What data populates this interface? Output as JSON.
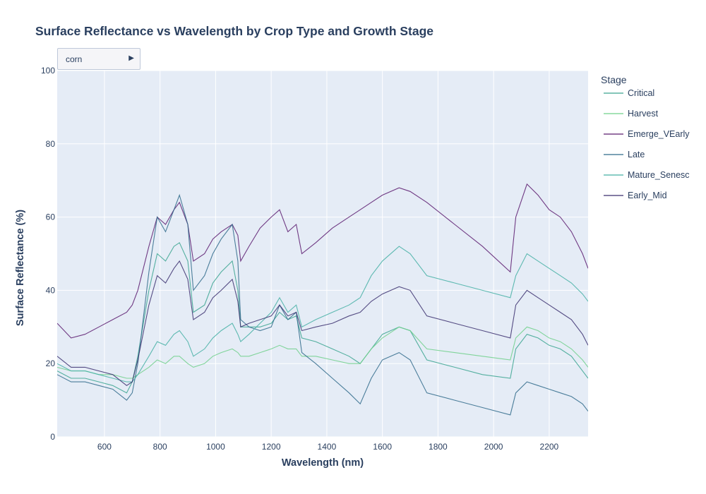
{
  "chart_data": {
    "type": "line",
    "title": "Surface Reflectance vs Wavelength by Crop Type and Growth Stage",
    "xlabel": "Wavelength (nm)",
    "ylabel": "Surface Reflectance (%)",
    "xlim": [
      430,
      2340
    ],
    "ylim": [
      0,
      100
    ],
    "x_ticks": [
      600,
      800,
      1000,
      1200,
      1400,
      1600,
      1800,
      2000,
      2200
    ],
    "y_ticks": [
      0,
      20,
      40,
      60,
      80,
      100
    ],
    "grid": true,
    "plot_background": "#e5ecf6",
    "dropdown": {
      "selected": "corn",
      "arrow": "▶"
    },
    "legend": {
      "title": "Stage",
      "placement": "right",
      "entries": [
        {
          "name": "Critical",
          "color": "#3aa58f"
        },
        {
          "name": "Harvest",
          "color": "#6fd08a"
        },
        {
          "name": "Emerge_VEarly",
          "color": "#5a1a6e"
        },
        {
          "name": "Late",
          "color": "#2f6a8a"
        },
        {
          "name": "Mature_Senesc",
          "color": "#45b0a4"
        },
        {
          "name": "Early_Mid",
          "color": "#3b2f6e"
        }
      ]
    },
    "x": [
      430,
      480,
      530,
      580,
      630,
      680,
      700,
      720,
      760,
      790,
      820,
      850,
      870,
      900,
      920,
      960,
      990,
      1020,
      1060,
      1080,
      1090,
      1120,
      1160,
      1200,
      1230,
      1260,
      1290,
      1310,
      1360,
      1420,
      1480,
      1520,
      1560,
      1600,
      1660,
      1700,
      1760,
      1860,
      1960,
      2060,
      2080,
      2120,
      2160,
      2200,
      2240,
      2280,
      2320,
      2340
    ],
    "series": [
      {
        "name": "Critical",
        "values": [
          18,
          16,
          16,
          15,
          14,
          12,
          15,
          22,
          40,
          50,
          48,
          52,
          53,
          48,
          34,
          36,
          42,
          45,
          48,
          40,
          30,
          30,
          30,
          31,
          34,
          32,
          33,
          27,
          26,
          24,
          22,
          20,
          24,
          28,
          30,
          29,
          21,
          19,
          17,
          16,
          24,
          28,
          27,
          25,
          24,
          22,
          18,
          16
        ]
      },
      {
        "name": "Harvest",
        "values": [
          19,
          18,
          18,
          17,
          17,
          16,
          16,
          17,
          19,
          21,
          20,
          22,
          22,
          20,
          19,
          20,
          22,
          23,
          24,
          23,
          22,
          22,
          23,
          24,
          25,
          24,
          24,
          22,
          22,
          21,
          20,
          20,
          24,
          27,
          30,
          29,
          24,
          23,
          22,
          21,
          27,
          30,
          29,
          27,
          26,
          24,
          21,
          19
        ]
      },
      {
        "name": "Emerge_VEarly",
        "values": [
          31,
          27,
          28,
          30,
          32,
          34,
          36,
          40,
          52,
          60,
          58,
          62,
          64,
          58,
          48,
          50,
          54,
          56,
          58,
          55,
          48,
          52,
          57,
          60,
          62,
          56,
          58,
          50,
          53,
          57,
          60,
          62,
          64,
          66,
          68,
          67,
          64,
          58,
          52,
          45,
          60,
          69,
          66,
          62,
          60,
          56,
          50,
          46
        ]
      },
      {
        "name": "Late",
        "values": [
          17,
          15,
          15,
          14,
          13,
          10,
          12,
          20,
          45,
          60,
          56,
          62,
          66,
          58,
          40,
          44,
          50,
          54,
          58,
          48,
          32,
          30,
          29,
          30,
          36,
          32,
          34,
          23,
          20,
          16,
          12,
          9,
          16,
          21,
          23,
          21,
          12,
          10,
          8,
          6,
          12,
          15,
          14,
          13,
          12,
          11,
          9,
          7
        ]
      },
      {
        "name": "Mature_Senesc",
        "values": [
          20,
          18,
          18,
          17,
          16,
          15,
          15,
          17,
          22,
          26,
          25,
          28,
          29,
          26,
          22,
          24,
          27,
          29,
          31,
          28,
          26,
          28,
          31,
          34,
          38,
          34,
          36,
          30,
          32,
          34,
          36,
          38,
          44,
          48,
          52,
          50,
          44,
          42,
          40,
          38,
          44,
          50,
          48,
          46,
          44,
          42,
          39,
          37
        ]
      },
      {
        "name": "Early_Mid",
        "values": [
          22,
          19,
          19,
          18,
          17,
          14,
          15,
          21,
          36,
          44,
          42,
          46,
          48,
          43,
          32,
          34,
          38,
          40,
          43,
          37,
          30,
          31,
          32,
          33,
          36,
          33,
          34,
          29,
          30,
          31,
          33,
          34,
          37,
          39,
          41,
          40,
          33,
          31,
          29,
          27,
          36,
          40,
          38,
          36,
          34,
          32,
          28,
          25
        ]
      }
    ]
  }
}
